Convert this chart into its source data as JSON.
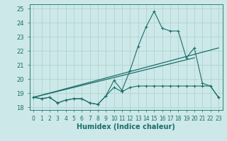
{
  "xlabel": "Humidex (Indice chaleur)",
  "xlim": [
    -0.5,
    23.5
  ],
  "ylim": [
    17.8,
    25.3
  ],
  "xticks": [
    0,
    1,
    2,
    3,
    4,
    5,
    6,
    7,
    8,
    9,
    10,
    11,
    12,
    13,
    14,
    15,
    16,
    17,
    18,
    19,
    20,
    21,
    22,
    23
  ],
  "yticks": [
    18,
    19,
    20,
    21,
    22,
    23,
    24,
    25
  ],
  "bg_color": "#cde8e8",
  "line_color": "#1a6e6a",
  "grid_color": "#aacfcf",
  "series_main_x": [
    0,
    1,
    2,
    3,
    4,
    5,
    6,
    7,
    8,
    9,
    10,
    11,
    12,
    13,
    14,
    15,
    16,
    17,
    18,
    19,
    20,
    21,
    22,
    23
  ],
  "series_main_y": [
    18.7,
    18.6,
    18.7,
    18.3,
    18.5,
    18.6,
    18.6,
    18.3,
    18.2,
    18.8,
    19.9,
    19.2,
    20.6,
    22.3,
    23.7,
    24.8,
    23.6,
    23.4,
    23.4,
    21.5,
    22.2,
    19.7,
    19.5,
    18.7
  ],
  "series_flat_x": [
    0,
    1,
    2,
    3,
    4,
    5,
    6,
    7,
    8,
    9,
    10,
    11,
    12,
    13,
    14,
    15,
    16,
    17,
    18,
    19,
    20,
    21,
    22,
    23
  ],
  "series_flat_y": [
    18.7,
    18.6,
    18.7,
    18.3,
    18.5,
    18.6,
    18.6,
    18.3,
    18.2,
    18.8,
    19.4,
    19.1,
    19.4,
    19.5,
    19.5,
    19.5,
    19.5,
    19.5,
    19.5,
    19.5,
    19.5,
    19.5,
    19.5,
    18.7
  ],
  "trend1_x": [
    0,
    20
  ],
  "trend1_y": [
    18.7,
    21.5
  ],
  "trend2_x": [
    0,
    23
  ],
  "trend2_y": [
    18.7,
    22.2
  ]
}
